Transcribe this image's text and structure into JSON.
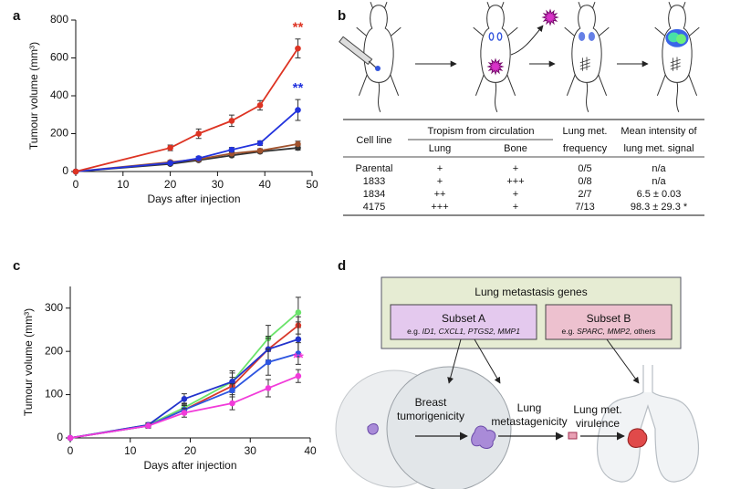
{
  "panel_labels": [
    "a",
    "b",
    "c",
    "d"
  ],
  "chart_data": [
    {
      "type": "line",
      "x_label": "Days after injection",
      "y_label": "Tumour volume (mm³)",
      "x": [
        0,
        20,
        26,
        33,
        39,
        47
      ],
      "xlim": [
        0,
        50
      ],
      "xticks": [
        0,
        10,
        20,
        30,
        40,
        50
      ],
      "ylim": [
        0,
        800
      ],
      "yticks": [
        0,
        200,
        400,
        600,
        800
      ],
      "series": [
        {
          "color": "#333333",
          "values": [
            0,
            40,
            60,
            85,
            105,
            125
          ],
          "errors": [
            0,
            6,
            8,
            8,
            8,
            12
          ]
        },
        {
          "color": "#a0522d",
          "values": [
            0,
            50,
            65,
            95,
            110,
            145
          ],
          "errors": [
            0,
            8,
            8,
            10,
            10,
            15
          ]
        },
        {
          "color": "#2233dd",
          "values": [
            0,
            45,
            70,
            115,
            150,
            325
          ],
          "errors": [
            0,
            8,
            10,
            12,
            12,
            55
          ],
          "annotation": "**"
        },
        {
          "color": "#dd3322",
          "values": [
            0,
            125,
            200,
            268,
            350,
            650
          ],
          "errors": [
            0,
            15,
            25,
            30,
            25,
            50
          ],
          "annotation": "**"
        }
      ]
    },
    {
      "type": "line",
      "x_label": "Days after injection",
      "y_label": "Tumour volume (mm³)",
      "x": [
        0,
        13,
        19,
        27,
        33,
        38
      ],
      "xlim": [
        0,
        40
      ],
      "xticks": [
        0,
        10,
        20,
        30,
        40
      ],
      "ylim": [
        0,
        350
      ],
      "yticks": [
        0,
        100,
        200,
        300
      ],
      "series": [
        {
          "color": "#6be36b",
          "values": [
            0,
            30,
            70,
            130,
            230,
            290
          ],
          "errors": [
            0,
            5,
            10,
            20,
            30,
            35
          ]
        },
        {
          "color": "#d8392b",
          "values": [
            0,
            28,
            65,
            120,
            205,
            260
          ],
          "errors": [
            0,
            5,
            10,
            20,
            25,
            20
          ]
        },
        {
          "color": "#2233cc",
          "values": [
            0,
            30,
            90,
            130,
            205,
            228
          ],
          "errors": [
            0,
            5,
            12,
            25,
            30,
            40
          ]
        },
        {
          "color": "#2d55e0",
          "values": [
            0,
            28,
            65,
            110,
            175,
            195
          ],
          "errors": [
            0,
            5,
            10,
            15,
            30,
            25
          ]
        },
        {
          "color": "#f13bd9",
          "values": [
            0,
            28,
            58,
            80,
            115,
            143
          ],
          "errors": [
            0,
            5,
            10,
            15,
            20,
            15
          ],
          "annotation": "**"
        }
      ]
    }
  ],
  "table": {
    "header": {
      "cell_line": "Cell line",
      "tropism": "Tropism from circulation",
      "lung": "Lung",
      "bone": "Bone",
      "frequency": [
        "Lung met.",
        "frequency"
      ],
      "intensity": [
        "Mean intensity of",
        "lung met. signal"
      ]
    },
    "rows": [
      [
        "Parental",
        "+",
        "+",
        "0/5",
        "n/a"
      ],
      [
        "1833",
        "+",
        "+++",
        "0/8",
        "n/a"
      ],
      [
        "1834",
        "++",
        "+",
        "2/7",
        "6.5 ± 0.03"
      ],
      [
        "4175",
        "+++",
        "+",
        "7/13",
        "98.3 ± 29.3 *"
      ]
    ]
  },
  "diagram": {
    "title": "Lung metastasis genes",
    "subset_a": {
      "title": "Subset A",
      "prefix": "e.g.",
      "genes": [
        "ID1,",
        "CXCL1,",
        "PTGS2,",
        "MMP1"
      ]
    },
    "subset_b": {
      "title": "Subset B",
      "prefix": "e.g.",
      "genes": [
        "SPARC,",
        "MMP2,"
      ],
      "suffix": "others"
    },
    "steps": [
      [
        "Breast",
        "tumorigenicity"
      ],
      [
        "Lung",
        "metastagenicity"
      ],
      [
        "Lung met.",
        "virulence"
      ]
    ]
  }
}
